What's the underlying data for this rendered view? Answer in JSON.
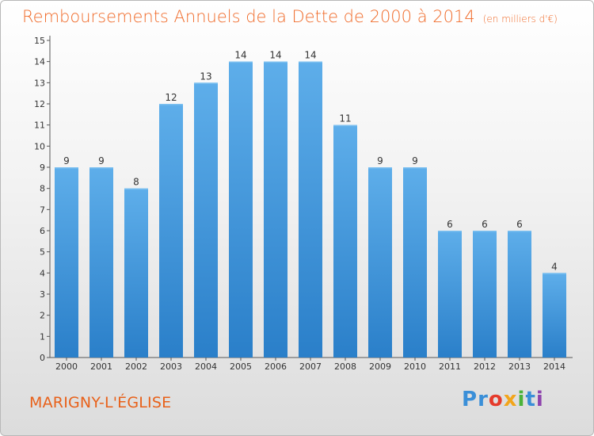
{
  "chart_data": {
    "type": "bar",
    "title": "Remboursements Annuels de la Dette de 2000 à 2014",
    "unit_label": "(en milliers d'€)",
    "categories": [
      "2000",
      "2001",
      "2002",
      "2003",
      "2004",
      "2005",
      "2006",
      "2007",
      "2008",
      "2009",
      "2010",
      "2011",
      "2012",
      "2013",
      "2014"
    ],
    "values": [
      9,
      9,
      8,
      12,
      13,
      14,
      14,
      14,
      11,
      9,
      9,
      6,
      6,
      6,
      4
    ],
    "yticks": [
      0,
      1,
      2,
      3,
      4,
      5,
      6,
      7,
      8,
      9,
      10,
      11,
      12,
      13,
      14,
      15
    ],
    "ylim": [
      0,
      15
    ],
    "xlabel": "",
    "ylabel": "",
    "grid": false
  },
  "location": "MARIGNY-L'ÉGLISE",
  "logo": {
    "letters": [
      "P",
      "r",
      "o",
      "x",
      "i",
      "t",
      "i"
    ],
    "colors": [
      "#3a8fd8",
      "#3a8fd8",
      "#e53b2c",
      "#f2a51b",
      "#4bb33a",
      "#3a8fd8",
      "#8e44ad"
    ]
  },
  "colors": {
    "bar_top": "#5eaeea",
    "bar_bottom": "#2a7fc9",
    "title": "#f06b2a",
    "axis": "#555555",
    "text": "#333333"
  }
}
